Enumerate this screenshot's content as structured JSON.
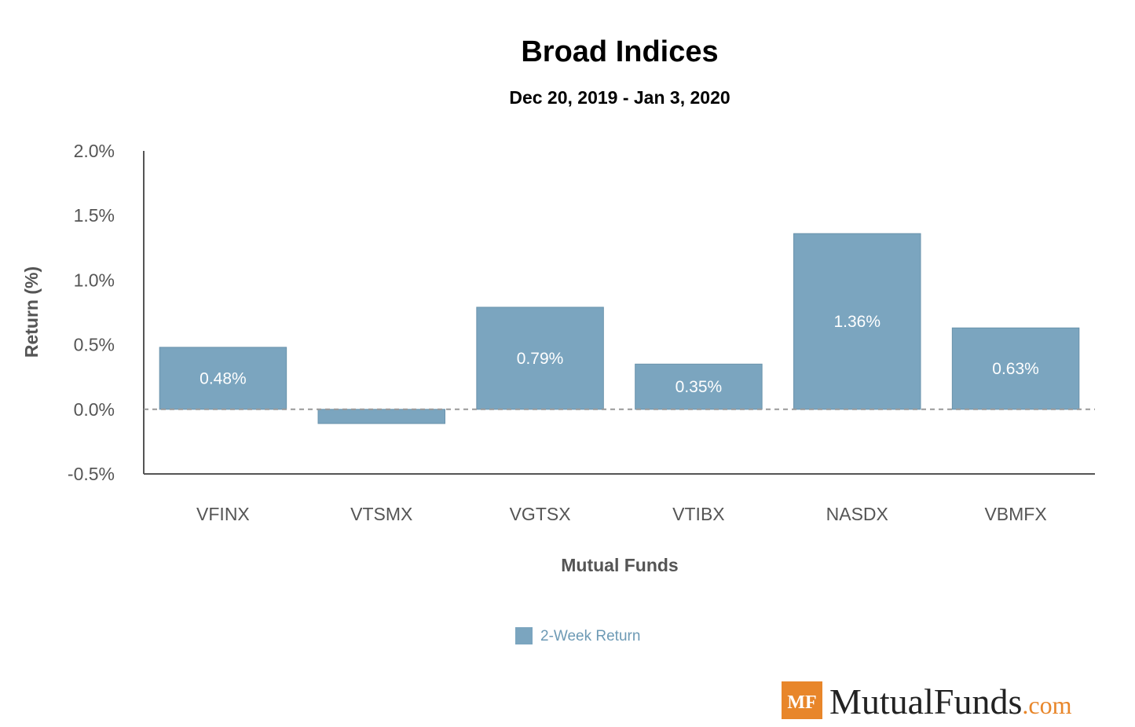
{
  "chart_data": {
    "type": "bar",
    "title": "Broad Indices",
    "subtitle": "Dec 20, 2019 - Jan 3, 2020",
    "xlabel": "Mutual Funds",
    "ylabel": "Return (%)",
    "categories": [
      "VFINX",
      "VTSMX",
      "VGTSX",
      "VTIBX",
      "NASDX",
      "VBMFX"
    ],
    "series": [
      {
        "name": "2-Week Return",
        "values": [
          0.48,
          -0.11,
          0.79,
          0.35,
          1.36,
          0.63
        ],
        "data_labels": [
          "0.48%",
          "",
          "0.79%",
          "0.35%",
          "1.36%",
          "0.63%"
        ]
      }
    ],
    "ylim": [
      -0.5,
      2.0
    ],
    "yticks": [
      -0.5,
      0.0,
      0.5,
      1.0,
      1.5,
      2.0
    ],
    "ytick_labels": [
      "-0.5%",
      "0.0%",
      "0.5%",
      "1.0%",
      "1.5%",
      "2.0%"
    ],
    "grid": false,
    "zero_line": "dashed",
    "legend": "bottom-center",
    "colors": {
      "bar": "#7BA5BF",
      "legend_text": "#6D9AB5",
      "axis": "#555555"
    }
  },
  "brand": {
    "badge": "MF",
    "name": "MutualFunds",
    "suffix": ".com",
    "badge_color": "#E8862A",
    "suffix_color": "#E8862A"
  }
}
